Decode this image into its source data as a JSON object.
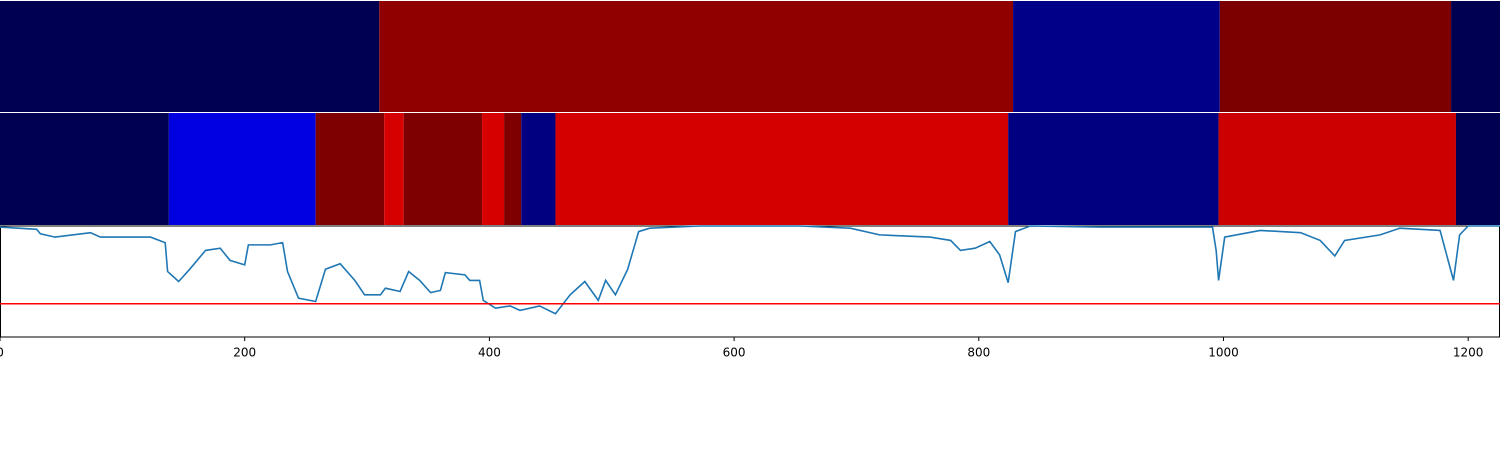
{
  "chart_data": {
    "type": "segments",
    "xlim": [
      0,
      1226
    ],
    "xticks": [
      0,
      200,
      400,
      600,
      800,
      1000,
      1200
    ],
    "bands": [
      {
        "edges": [
          0,
          310,
          828,
          997,
          1186,
          1226
        ],
        "colors": [
          "#000050",
          "#900000",
          "#000088",
          "#7c0000",
          "#000050"
        ]
      },
      {
        "edges": [
          0,
          138,
          258,
          314,
          330,
          394,
          412,
          426,
          454,
          824,
          996,
          1190,
          1226
        ],
        "colors": [
          "#000050",
          "#0000e0",
          "#7e0000",
          "#d60000",
          "#7e0000",
          "#d60000",
          "#7e0000",
          "#000080",
          "#d40000",
          "#000080",
          "#cc0000",
          "#000050"
        ]
      }
    ],
    "line": {
      "color": "#1f77b4",
      "ylim": [
        0,
        1
      ],
      "threshold": 0.3,
      "threshold_color": "#ff0000",
      "x": [
        0,
        30,
        33,
        45,
        74,
        82,
        123,
        135,
        137,
        146,
        155,
        168,
        180,
        188,
        200,
        203,
        221,
        231,
        235,
        244,
        258,
        266,
        278,
        290,
        298,
        311,
        315,
        327,
        334,
        343,
        352,
        360,
        364,
        380,
        384,
        392,
        395,
        405,
        417,
        425,
        441,
        454,
        466,
        478,
        489,
        495,
        503,
        513,
        522,
        531,
        572,
        654,
        695,
        719,
        760,
        777,
        785,
        797,
        809,
        817,
        824,
        830,
        842,
        899,
        991,
        994,
        996,
        1001,
        1030,
        1063,
        1079,
        1091,
        1099,
        1128,
        1144,
        1177,
        1188,
        1193,
        1200,
        1226
      ],
      "values": [
        0.99,
        0.97,
        0.93,
        0.9,
        0.94,
        0.9,
        0.9,
        0.85,
        0.59,
        0.5,
        0.61,
        0.78,
        0.8,
        0.69,
        0.65,
        0.83,
        0.83,
        0.85,
        0.59,
        0.35,
        0.32,
        0.61,
        0.66,
        0.51,
        0.38,
        0.38,
        0.44,
        0.41,
        0.59,
        0.51,
        0.4,
        0.42,
        0.58,
        0.56,
        0.51,
        0.51,
        0.33,
        0.26,
        0.28,
        0.24,
        0.28,
        0.21,
        0.38,
        0.5,
        0.33,
        0.51,
        0.38,
        0.61,
        0.95,
        0.98,
        1.0,
        1.0,
        0.98,
        0.92,
        0.9,
        0.87,
        0.78,
        0.8,
        0.86,
        0.74,
        0.49,
        0.95,
        1.0,
        0.99,
        0.99,
        0.78,
        0.51,
        0.9,
        0.96,
        0.94,
        0.87,
        0.73,
        0.87,
        0.92,
        0.98,
        0.96,
        0.51,
        0.92,
        1.0,
        1.0
      ]
    }
  }
}
